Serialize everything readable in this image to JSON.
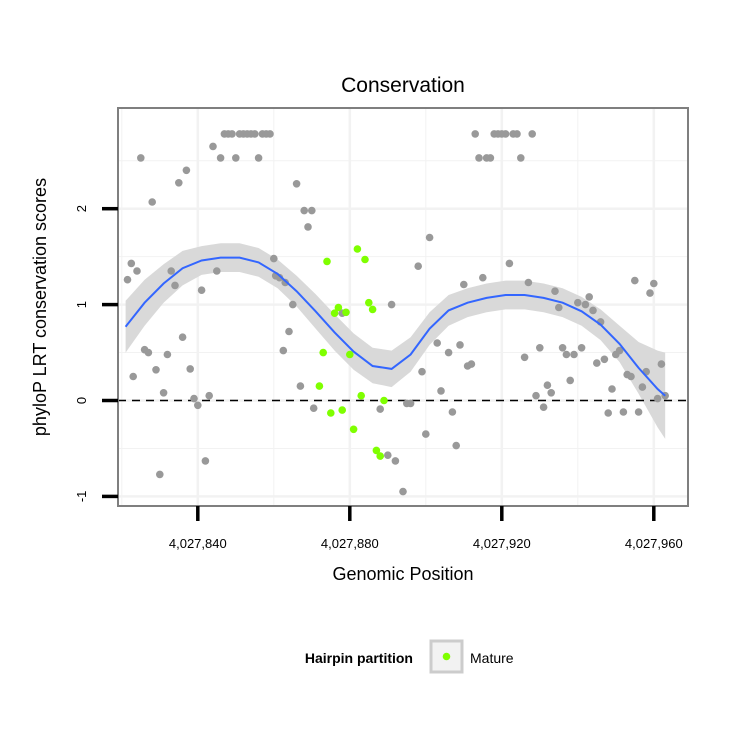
{
  "chart_data": {
    "type": "scatter",
    "title": "Conservation",
    "xlabel": "Genomic Position",
    "ylabel": "phyloP LRT conservation scores",
    "xlim": [
      4027819,
      4027969
    ],
    "ylim": [
      -1.1,
      3.05
    ],
    "x_ticks": [
      {
        "value": 4027840,
        "label": "4,027,840"
      },
      {
        "value": 4027880,
        "label": "4,027,880"
      },
      {
        "value": 4027920,
        "label": "4,027,920"
      },
      {
        "value": 4027960,
        "label": "4,027,960"
      }
    ],
    "y_ticks": [
      {
        "value": -1,
        "label": "-1"
      },
      {
        "value": 0,
        "label": "0"
      },
      {
        "value": 1,
        "label": "1"
      },
      {
        "value": 2,
        "label": "2"
      }
    ],
    "reference_line": {
      "y": 0,
      "style": "dashed"
    },
    "grid": true,
    "legend": {
      "title": "Hairpin partition",
      "placement": "bottom",
      "entries": [
        {
          "label": "Mature",
          "color": "#7fff00"
        }
      ]
    },
    "colors": {
      "other": "#999999",
      "mature": "#7fff00",
      "smooth": "#3366ff",
      "band": "#d9d9d9",
      "panel_border": "#7f7f7f",
      "grid": "#f2f2f2"
    },
    "series": [
      {
        "name": "",
        "points": [
          [
            4027821.5,
            1.26
          ],
          [
            4027822.5,
            1.43
          ],
          [
            4027823,
            0.25
          ],
          [
            4027824,
            1.35
          ],
          [
            4027825,
            2.53
          ],
          [
            4027826,
            0.53
          ],
          [
            4027827,
            0.5
          ],
          [
            4027828,
            2.07
          ],
          [
            4027829,
            0.32
          ],
          [
            4027830,
            -0.77
          ],
          [
            4027831,
            0.08
          ],
          [
            4027832,
            0.48
          ],
          [
            4027833,
            1.35
          ],
          [
            4027834,
            1.2
          ],
          [
            4027835,
            2.27
          ],
          [
            4027836,
            0.66
          ],
          [
            4027837,
            2.4
          ],
          [
            4027838,
            0.33
          ],
          [
            4027839,
            0.02
          ],
          [
            4027840,
            -0.05
          ],
          [
            4027841,
            1.15
          ],
          [
            4027842,
            -0.63
          ],
          [
            4027843,
            0.05
          ],
          [
            4027844,
            2.65
          ],
          [
            4027845,
            1.35
          ],
          [
            4027846,
            2.53
          ],
          [
            4027847,
            2.78
          ],
          [
            4027848,
            2.78
          ],
          [
            4027849,
            2.78
          ],
          [
            4027850,
            2.53
          ],
          [
            4027851,
            2.78
          ],
          [
            4027852,
            2.78
          ],
          [
            4027853,
            2.78
          ],
          [
            4027854,
            2.78
          ],
          [
            4027855,
            2.78
          ],
          [
            4027856,
            2.53
          ],
          [
            4027857,
            2.78
          ],
          [
            4027858,
            2.78
          ],
          [
            4027859,
            2.78
          ],
          [
            4027860,
            1.48
          ],
          [
            4027860.5,
            1.3
          ],
          [
            4027861.5,
            1.28
          ],
          [
            4027862.5,
            0.52
          ],
          [
            4027863,
            1.23
          ],
          [
            4027864,
            0.72
          ],
          [
            4027865,
            1.0
          ],
          [
            4027866,
            2.26
          ],
          [
            4027867,
            0.15
          ],
          [
            4027868,
            1.98
          ],
          [
            4027869,
            1.81
          ],
          [
            4027870,
            1.98
          ],
          [
            4027870.5,
            -0.08
          ],
          [
            4027878,
            0.91
          ],
          [
            4027888,
            -0.09
          ],
          [
            4027890,
            -0.57
          ],
          [
            4027891,
            1.0
          ],
          [
            4027892,
            -0.63
          ],
          [
            4027894,
            -0.95
          ],
          [
            4027895,
            -0.03
          ],
          [
            4027896,
            -0.03
          ],
          [
            4027898,
            1.4
          ],
          [
            4027899,
            0.3
          ],
          [
            4027900,
            -0.35
          ],
          [
            4027901,
            1.7
          ],
          [
            4027903,
            0.6
          ],
          [
            4027904,
            0.1
          ],
          [
            4027906,
            0.5
          ],
          [
            4027907,
            -0.12
          ],
          [
            4027908,
            -0.47
          ],
          [
            4027909,
            0.58
          ],
          [
            4027910,
            1.21
          ],
          [
            4027911,
            0.36
          ],
          [
            4027912,
            0.38
          ],
          [
            4027913,
            2.78
          ],
          [
            4027914,
            2.53
          ],
          [
            4027915,
            1.28
          ],
          [
            4027916,
            2.53
          ],
          [
            4027917,
            2.53
          ],
          [
            4027918,
            2.78
          ],
          [
            4027919,
            2.78
          ],
          [
            4027920,
            2.78
          ],
          [
            4027921,
            2.78
          ],
          [
            4027922,
            1.43
          ],
          [
            4027923,
            2.78
          ],
          [
            4027924,
            2.78
          ],
          [
            4027925,
            2.53
          ],
          [
            4027926,
            0.45
          ],
          [
            4027927,
            1.23
          ],
          [
            4027928,
            2.78
          ],
          [
            4027929,
            0.05
          ],
          [
            4027930,
            0.55
          ],
          [
            4027931,
            -0.07
          ],
          [
            4027932,
            0.16
          ],
          [
            4027933,
            0.08
          ],
          [
            4027934,
            1.14
          ],
          [
            4027935,
            0.97
          ],
          [
            4027936,
            0.55
          ],
          [
            4027937,
            0.48
          ],
          [
            4027938,
            0.21
          ],
          [
            4027939,
            0.48
          ],
          [
            4027940,
            1.02
          ],
          [
            4027941,
            0.55
          ],
          [
            4027942,
            1.0
          ],
          [
            4027943,
            1.08
          ],
          [
            4027944,
            0.94
          ],
          [
            4027945,
            0.39
          ],
          [
            4027946,
            0.82
          ],
          [
            4027947,
            0.43
          ],
          [
            4027948,
            -0.13
          ],
          [
            4027949,
            0.12
          ],
          [
            4027950,
            0.48
          ],
          [
            4027951,
            0.52
          ],
          [
            4027952,
            -0.12
          ],
          [
            4027953,
            0.27
          ],
          [
            4027954,
            0.25
          ],
          [
            4027955,
            1.25
          ],
          [
            4027956,
            -0.12
          ],
          [
            4027957,
            0.14
          ],
          [
            4027958,
            0.3
          ],
          [
            4027959,
            1.12
          ],
          [
            4027960,
            1.22
          ],
          [
            4027961,
            0.02
          ],
          [
            4027962,
            0.38
          ],
          [
            4027963,
            0.05
          ]
        ]
      },
      {
        "name": "Mature",
        "points": [
          [
            4027872,
            0.15
          ],
          [
            4027873,
            0.5
          ],
          [
            4027874,
            1.45
          ],
          [
            4027875,
            -0.13
          ],
          [
            4027876,
            0.91
          ],
          [
            4027877,
            0.97
          ],
          [
            4027878,
            -0.1
          ],
          [
            4027879,
            0.92
          ],
          [
            4027880,
            0.48
          ],
          [
            4027881,
            -0.3
          ],
          [
            4027882,
            1.58
          ],
          [
            4027883,
            0.05
          ],
          [
            4027884,
            1.47
          ],
          [
            4027885,
            1.02
          ],
          [
            4027886,
            0.95
          ],
          [
            4027887,
            -0.52
          ],
          [
            4027888,
            -0.58
          ],
          [
            4027889,
            0.0
          ]
        ]
      }
    ],
    "smooth": [
      [
        4027821,
        0.77,
        0.5,
        1.04
      ],
      [
        4027826,
        1.02,
        0.78,
        1.26
      ],
      [
        4027831,
        1.22,
        1.02,
        1.42
      ],
      [
        4027836,
        1.38,
        1.2,
        1.56
      ],
      [
        4027841,
        1.46,
        1.31,
        1.61
      ],
      [
        4027846,
        1.49,
        1.34,
        1.64
      ],
      [
        4027851,
        1.49,
        1.34,
        1.64
      ],
      [
        4027856,
        1.44,
        1.29,
        1.59
      ],
      [
        4027861,
        1.32,
        1.17,
        1.47
      ],
      [
        4027866,
        1.14,
        0.98,
        1.3
      ],
      [
        4027871,
        0.93,
        0.75,
        1.11
      ],
      [
        4027876,
        0.71,
        0.52,
        0.9
      ],
      [
        4027881,
        0.51,
        0.32,
        0.7
      ],
      [
        4027886,
        0.36,
        0.18,
        0.55
      ],
      [
        4027891,
        0.33,
        0.14,
        0.52
      ],
      [
        4027896,
        0.48,
        0.3,
        0.66
      ],
      [
        4027901,
        0.75,
        0.58,
        0.92
      ],
      [
        4027906,
        0.94,
        0.78,
        1.1
      ],
      [
        4027911,
        1.02,
        0.87,
        1.17
      ],
      [
        4027916,
        1.07,
        0.92,
        1.22
      ],
      [
        4027921,
        1.1,
        0.95,
        1.25
      ],
      [
        4027926,
        1.1,
        0.95,
        1.25
      ],
      [
        4027931,
        1.07,
        0.92,
        1.22
      ],
      [
        4027936,
        1.02,
        0.87,
        1.17
      ],
      [
        4027941,
        0.93,
        0.78,
        1.08
      ],
      [
        4027946,
        0.79,
        0.63,
        0.95
      ],
      [
        4027951,
        0.59,
        0.4,
        0.78
      ],
      [
        4027956,
        0.34,
        0.07,
        0.61
      ],
      [
        4027961,
        0.12,
        -0.28,
        0.52
      ],
      [
        4027963,
        0.05,
        -0.4,
        0.5
      ]
    ]
  }
}
